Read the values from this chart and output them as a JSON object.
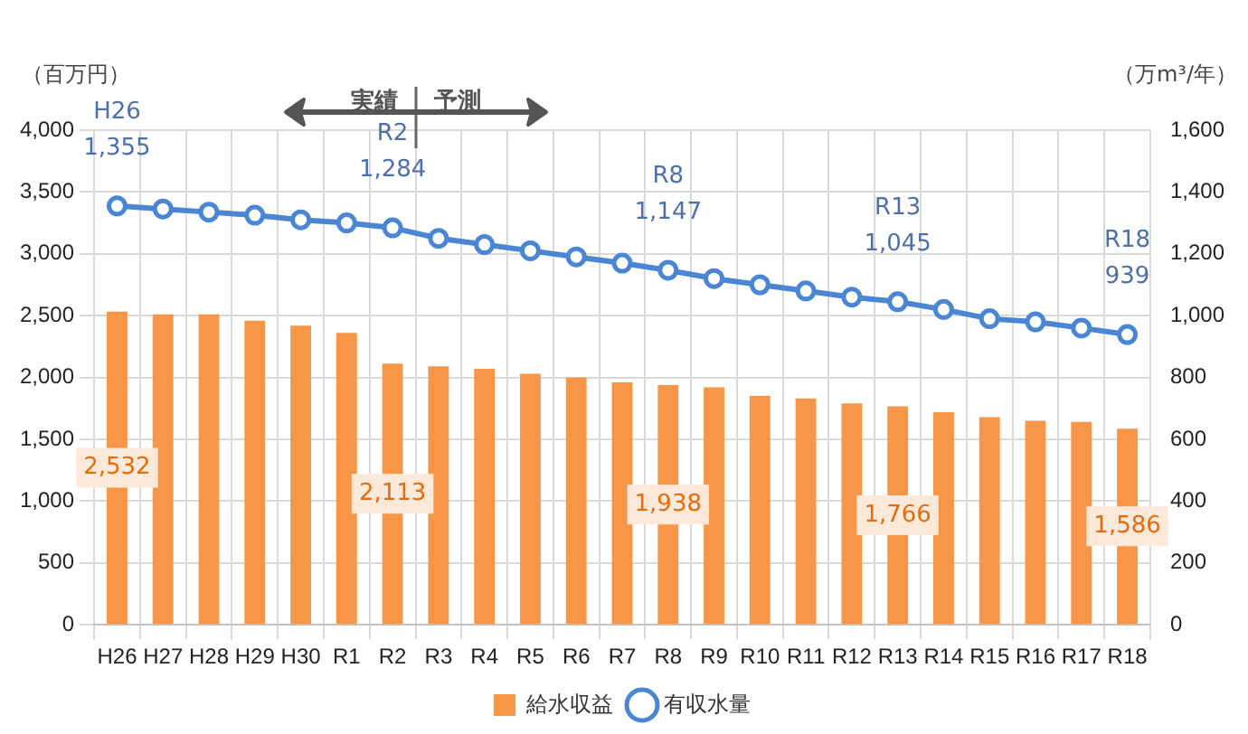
{
  "chart_data": {
    "type": "bar",
    "ylabel": "（百万円）",
    "y2label": "（万m³/年）",
    "categories": [
      "H26",
      "H27",
      "H28",
      "H29",
      "H30",
      "R1",
      "R2",
      "R3",
      "R4",
      "R5",
      "R6",
      "R7",
      "R8",
      "R9",
      "R10",
      "R11",
      "R12",
      "R13",
      "R14",
      "R15",
      "R16",
      "R17",
      "R18"
    ],
    "series": [
      {
        "name": "給水収益",
        "color": "#f79646",
        "values": [
          2532,
          2510,
          2510,
          2460,
          2420,
          2360,
          2113,
          2090,
          2070,
          2030,
          2000,
          1960,
          1938,
          1920,
          1850,
          1830,
          1790,
          1766,
          1720,
          1680,
          1650,
          1640,
          1586
        ],
        "value_labels": [
          "2,532",
          null,
          null,
          null,
          null,
          null,
          "2,113",
          null,
          null,
          null,
          null,
          null,
          "1,938",
          null,
          null,
          null,
          null,
          "1,766",
          null,
          null,
          null,
          null,
          "1,586"
        ]
      },
      {
        "name": "有収水量",
        "type": "line",
        "axis": "y2",
        "color": "#4a86d4",
        "values": [
          1355,
          1345,
          1335,
          1325,
          1310,
          1300,
          1284,
          1250,
          1230,
          1210,
          1190,
          1170,
          1147,
          1120,
          1100,
          1080,
          1060,
          1045,
          1020,
          990,
          980,
          960,
          939
        ],
        "value_labels": [
          "1,355",
          null,
          null,
          null,
          null,
          null,
          "1,284",
          null,
          null,
          null,
          null,
          null,
          "1,147",
          null,
          null,
          null,
          null,
          "1,045",
          null,
          null,
          null,
          null,
          "939"
        ]
      }
    ],
    "annotations": [
      "H26",
      "R2",
      "R8",
      "R13",
      "R18",
      "実績",
      "予測"
    ],
    "ylim": [
      0,
      4000
    ],
    "yticks": [
      0,
      500,
      {
        "value": 1000,
        "label": "1,000"
      },
      {
        "value": 1500,
        "label": "1,500"
      },
      {
        "value": 2000,
        "label": "2,000"
      },
      {
        "value": 2500,
        "label": "2,500"
      },
      {
        "value": 3000,
        "label": "3,000"
      },
      {
        "value": 3500,
        "label": "3,500"
      },
      {
        "value": 4000,
        "label": "4,000"
      }
    ],
    "y2lim": [
      0,
      1600
    ],
    "y2ticks": [
      0,
      200,
      400,
      600,
      800,
      {
        "value": 1000,
        "label": "1,000"
      },
      {
        "value": 1200,
        "label": "1,200"
      },
      {
        "value": 1400,
        "label": "1,400"
      },
      {
        "value": 1600,
        "label": "1,600"
      }
    ],
    "grid": true,
    "legend": "bottom",
    "marker": "circle",
    "line_style": "solid"
  }
}
